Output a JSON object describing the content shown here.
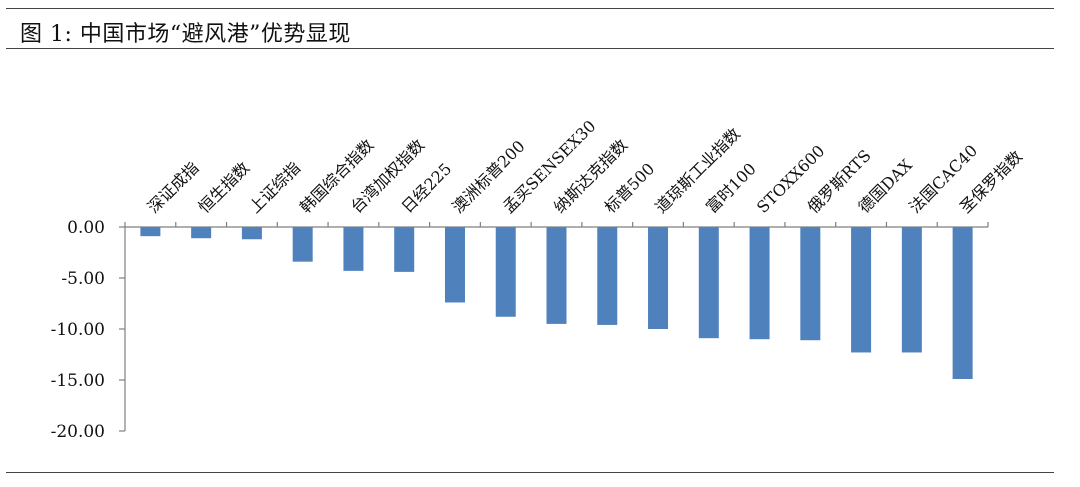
{
  "header": {
    "title": "图 1: 中国市场“避风港”优势显现"
  },
  "chart_data": {
    "type": "bar",
    "title": "",
    "xlabel": "",
    "ylabel": "",
    "ylim": [
      -20,
      0
    ],
    "yticks": [
      0,
      -5,
      -10,
      -15,
      -20
    ],
    "ytick_labels": [
      "0.00",
      "-5.00",
      "-10.00",
      "-15.00",
      "-20.00"
    ],
    "grid": false,
    "categories": [
      "深证成指",
      "恒生指数",
      "上证综指",
      "韩国综合指数",
      "台湾加权指数",
      "日经225",
      "澳洲标普200",
      "孟买SENSEX30",
      "纳斯达克指数",
      "标普500",
      "道琼斯工业指数",
      "富时100",
      "STOXX600",
      "俄罗斯RTS",
      "德国DAX",
      "法国CAC40",
      "圣保罗指数"
    ],
    "values": [
      -0.9,
      -1.1,
      -1.2,
      -3.4,
      -4.3,
      -4.4,
      -7.4,
      -8.8,
      -9.5,
      -9.6,
      -10.0,
      -10.9,
      -11.0,
      -11.1,
      -12.3,
      -12.3,
      -14.9
    ],
    "bar_color": "#4F81BD"
  }
}
